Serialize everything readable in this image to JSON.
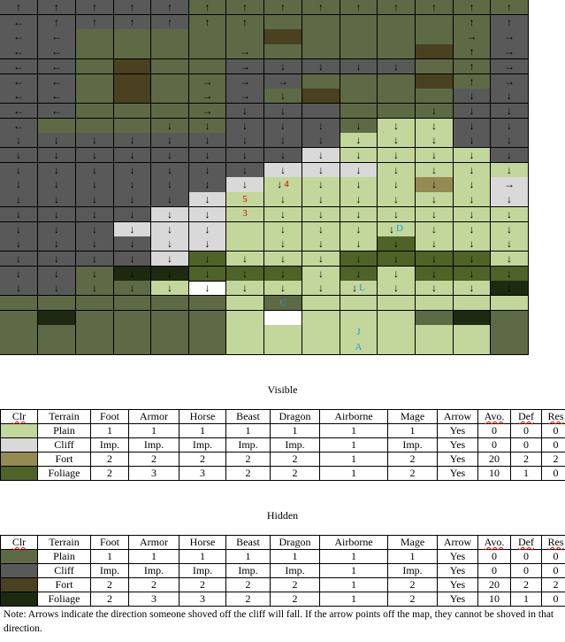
{
  "colors": {
    "plain_visible": "#c3d69b",
    "cliff_visible": "#d9d9d9",
    "fort_visible": "#948a54",
    "foliage_visible": "#4f6228",
    "plain_hidden": "#5e6a46",
    "cliff_hidden": "#595959",
    "fort_hidden": "#4a4120",
    "foliage_hidden": "#1d2a10"
  },
  "map": {
    "rows": [
      "CCCCCPPPPPPPPP",
      "CCCCCPPPPPPPPC",
      "CCPPPPPTPPPPPC",
      "CCPPPPPPPPPTPC",
      "CCPTPPCCCCCPPC",
      "CCPTPPCCPPPTPC",
      "CCPTPPCPTPPPCC",
      "CCPPPPCCCPPPCC",
      "CPPPPPCCCPppCC",
      "CCCCCCCCCpppCC",
      "CCCCCCCCcppppC",
      "CCCCCCCcccpppp",
      "CCCCCCcpppprpc",
      "CCCCCcpppppppc",
      "CCCCccpppppppp",
      "CCCcccpppppppp",
      "CCCCccppppgppp",
      "CCCCcgpppggggp",
      "CCPFFgggpgpggg",
      "CCPPpGpppppppF",
      "PPPPPPpPpppppp",
      "PFPPPPpGpppPFP",
      "PPPPPPpppppppP"
    ],
    "arrows": [
      "↑↑↑↑↑↑↑↑↑↑↑↑↑↑",
      "←↑↑↑↑↑↑     ↑↑",
      "←←          →→",
      "←←    →     ↑→",
      "←←    →↓↓↓↓ ↑→",
      "←←   →→→    ↑→",
      "←←   →→↓    ↓↓",
      "←←   →↓↓   ↓↓↓",
      "←   ↓↓↓↓↓↓↓↓↓↓",
      "↓↓↓↓↓↓↓↓↓↓↓↓↓↓",
      "↓↓↓↓↓↓↓↓↓↓↓↓↓↓",
      "↓↓↓↓↓↓↓↓↓↓↓↓↓↓",
      "↓↓↓↓↓↓↓↓↓↓↓↓↓→",
      "↓↓↓↓↓↓ ↓↓↓↓↓↓↓",
      "↓↓↓↓↓↓ ↓↓↓↓↓↓↓",
      "↓↓↓↓↓↓ ↓↓↓↓↓↓↓",
      "↓↓↓↓↓↓ ↓↓↓↓↓↓↓",
      "↓↓↓↓↓↓↓↓↓↓↓↓↓↓",
      "↓↓↓↓↓↓↓↓↓↓↓↓↓↓",
      "↓↓↓↓↓↓↓↓↓↓↓↓↓↓",
      "              ",
      "              ",
      "              "
    ],
    "labels": [
      {
        "row": 12,
        "col": 7,
        "text": "4",
        "color": "red"
      },
      {
        "row": 13,
        "col": 6,
        "text": "5",
        "color": "red"
      },
      {
        "row": 14,
        "col": 6,
        "text": "3",
        "color": "red"
      },
      {
        "row": 15,
        "col": 10,
        "text": "D",
        "color": "blue"
      },
      {
        "row": 19,
        "col": 9,
        "text": "L",
        "color": "blue"
      },
      {
        "row": 20,
        "col": 7,
        "text": "C",
        "color": "blue"
      },
      {
        "row": 22,
        "col": 9,
        "text": "J",
        "color": "blue"
      },
      {
        "row": 23,
        "col": 9,
        "text": "A",
        "color": "blue"
      }
    ]
  },
  "visible_title": "Visible",
  "hidden_title": "Hidden",
  "headers": [
    "Clr",
    "Terrain",
    "Foot",
    "Armor",
    "Horse",
    "Beast",
    "Dragon",
    "Airborne",
    "Mage",
    "Arrow",
    "Avo.",
    "Def",
    "Res"
  ],
  "visible_rows": [
    {
      "color": "#c3d69b",
      "cells": [
        "Plain",
        "1",
        "1",
        "1",
        "1",
        "1",
        "1",
        "1",
        "Yes",
        "0",
        "0",
        "0"
      ]
    },
    {
      "color": "#d9d9d9",
      "cells": [
        "Cliff",
        "Imp.",
        "Imp.",
        "Imp.",
        "Imp.",
        "Imp.",
        "1",
        "Imp.",
        "Yes",
        "0",
        "0",
        "0"
      ]
    },
    {
      "color": "#948a54",
      "cells": [
        "Fort",
        "2",
        "2",
        "2",
        "2",
        "2",
        "1",
        "2",
        "Yes",
        "20",
        "2",
        "2"
      ]
    },
    {
      "color": "#4f6228",
      "cells": [
        "Foliage",
        "2",
        "3",
        "3",
        "2",
        "2",
        "1",
        "2",
        "Yes",
        "10",
        "1",
        "0"
      ]
    }
  ],
  "hidden_rows": [
    {
      "color": "#5e6a46",
      "cells": [
        "Plain",
        "1",
        "1",
        "1",
        "1",
        "1",
        "1",
        "1",
        "Yes",
        "0",
        "0",
        "0"
      ]
    },
    {
      "color": "#595959",
      "cells": [
        "Cliff",
        "Imp.",
        "Imp.",
        "Imp.",
        "Imp.",
        "Imp.",
        "1",
        "Imp.",
        "Yes",
        "0",
        "0",
        "0"
      ]
    },
    {
      "color": "#4a4120",
      "cells": [
        "Fort",
        "2",
        "2",
        "2",
        "2",
        "2",
        "1",
        "2",
        "Yes",
        "20",
        "2",
        "2"
      ]
    },
    {
      "color": "#1d2a10",
      "cells": [
        "Foliage",
        "2",
        "3",
        "3",
        "2",
        "2",
        "1",
        "2",
        "Yes",
        "10",
        "1",
        "0"
      ]
    }
  ],
  "note": "Note: Arrows indicate the direction someone shoved off the cliff will fall. If the arrow points off the map, they cannot be shoved in that direction."
}
